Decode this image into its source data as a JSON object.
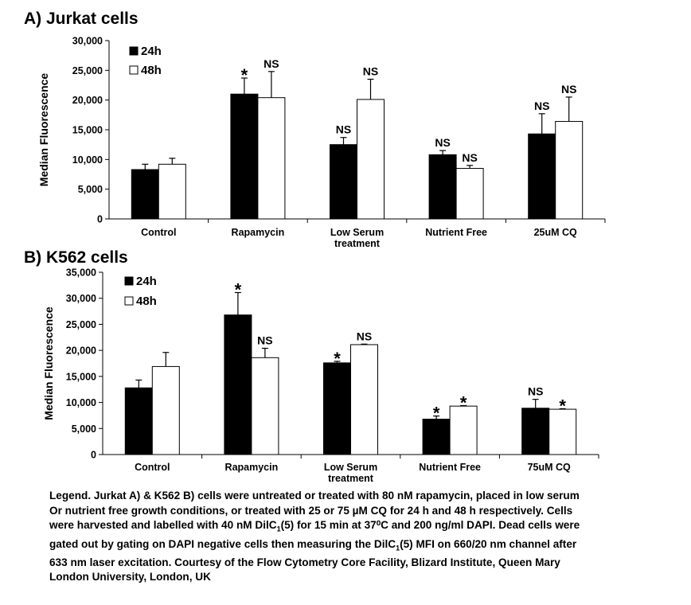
{
  "charts": {
    "jurkat": {
      "title": "A) Jurkat cells"
    },
    "k562": {
      "title": "B) K562 cells"
    }
  },
  "chart_data": [
    {
      "type": "bar",
      "title": "A) Jurkat cells",
      "ylabel": "Median Fluorescence",
      "ylim": [
        0,
        30000
      ],
      "yticks": [
        0,
        5000,
        10000,
        15000,
        20000,
        25000,
        30000
      ],
      "ytick_labels": [
        "0",
        "5,000",
        "10,000",
        "15,000",
        "20,000",
        "25,000",
        "30,000"
      ],
      "categories": [
        [
          "Control"
        ],
        [
          "Rapamycin"
        ],
        [
          "Low Serum",
          "treatment"
        ],
        [
          "Nutrient Free"
        ],
        [
          "25uM CQ"
        ]
      ],
      "series": [
        {
          "name": "24h",
          "color": "#000000",
          "values": [
            8300,
            21000,
            12500,
            10800,
            14300
          ],
          "errors": [
            900,
            2700,
            1200,
            700,
            3400
          ],
          "annotations": [
            "",
            "*",
            "NS",
            "NS",
            "NS"
          ]
        },
        {
          "name": "48h",
          "color": "#ffffff",
          "values": [
            9200,
            20400,
            20100,
            8500,
            16400
          ],
          "errors": [
            1000,
            4400,
            3400,
            500,
            4100
          ],
          "annotations": [
            "",
            "NS",
            "NS",
            "NS",
            "NS"
          ]
        }
      ],
      "legend": "top-left",
      "grid": false
    },
    {
      "type": "bar",
      "title": "B) K562 cells",
      "ylabel": "Median Fluorescence",
      "ylim": [
        0,
        35000
      ],
      "yticks": [
        0,
        5000,
        10000,
        15000,
        20000,
        25000,
        30000,
        35000
      ],
      "ytick_labels": [
        "0",
        "5,000",
        "10,000",
        "15,000",
        "20,000",
        "25,000",
        "30,000",
        "35,000"
      ],
      "categories": [
        [
          "Control"
        ],
        [
          "Rapamycin"
        ],
        [
          "Low Serum",
          "treatment"
        ],
        [
          "Nutrient Free"
        ],
        [
          "75uM CQ"
        ]
      ],
      "series": [
        {
          "name": "24h",
          "color": "#000000",
          "values": [
            12800,
            26800,
            17600,
            6800,
            8900
          ],
          "errors": [
            1500,
            4300,
            300,
            600,
            1700
          ],
          "annotations": [
            "",
            "*",
            "*",
            "*",
            "NS"
          ]
        },
        {
          "name": "48h",
          "color": "#ffffff",
          "values": [
            16900,
            18600,
            21100,
            9300,
            8700
          ],
          "errors": [
            2700,
            1800,
            100,
            100,
            100
          ],
          "annotations": [
            "",
            "NS",
            "NS",
            "*",
            "*"
          ]
        }
      ],
      "legend": "top-left",
      "grid": false
    }
  ],
  "legend_text": {
    "lines": [
      "Legend. Jurkat A) & K562 B) cells were untreated or treated with 80 nM rapamycin, placed in low serum",
      "Or nutrient free growth conditions, or treated with 25 or 75 µM CQ for 24 h and 48 h respectively. Cells",
      "were harvested and labelled with 40 nM DilC1(5) for 15 min at 37⁰C and 200 ng/ml DAPI. Dead cells were",
      "gated out by gating on DAPI negative cells then measuring the DilC1(5) MFI on 660/20 nm channel after",
      "633 nm laser excitation.  Courtesy of the Flow Cytometry Core Facility, Blizard Institute, Queen Mary",
      "London University, London, UK"
    ]
  }
}
